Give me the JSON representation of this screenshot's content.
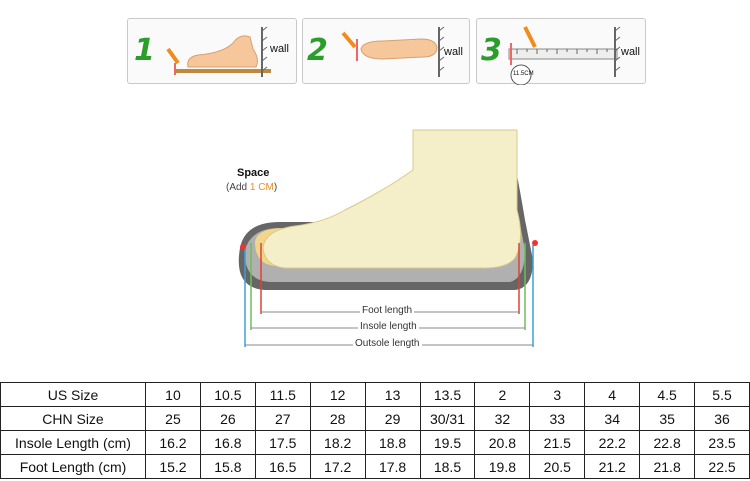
{
  "steps": [
    {
      "number": "1",
      "wall_label": "wall"
    },
    {
      "number": "2",
      "wall_label": "wall"
    },
    {
      "number": "3",
      "wall_label": "wall",
      "measure_label": "11.5CM"
    }
  ],
  "diagram": {
    "space_title": "Space",
    "space_sub_prefix": "(Add ",
    "space_sub_value": "1 CM",
    "space_sub_suffix": ")",
    "foot_length": "Foot length",
    "insole_length": "Insole length",
    "outsole_length": "Outsole length"
  },
  "size_table": {
    "rows": [
      {
        "label": "US Size",
        "values": [
          "10",
          "10.5",
          "11.5",
          "12",
          "13",
          "13.5",
          "2",
          "3",
          "4",
          "4.5",
          "5.5"
        ]
      },
      {
        "label": "CHN Size",
        "values": [
          "25",
          "26",
          "27",
          "28",
          "29",
          "30/31",
          "32",
          "33",
          "34",
          "35",
          "36"
        ]
      },
      {
        "label": "Insole Length (cm)",
        "values": [
          "16.2",
          "16.8",
          "17.5",
          "18.2",
          "18.8",
          "19.5",
          "20.8",
          "21.5",
          "22.2",
          "22.8",
          "23.5"
        ]
      },
      {
        "label": "Foot Length (cm)",
        "values": [
          "15.2",
          "15.8",
          "16.5",
          "17.2",
          "17.8",
          "18.5",
          "19.8",
          "20.5",
          "21.2",
          "21.8",
          "22.5"
        ]
      }
    ]
  }
}
